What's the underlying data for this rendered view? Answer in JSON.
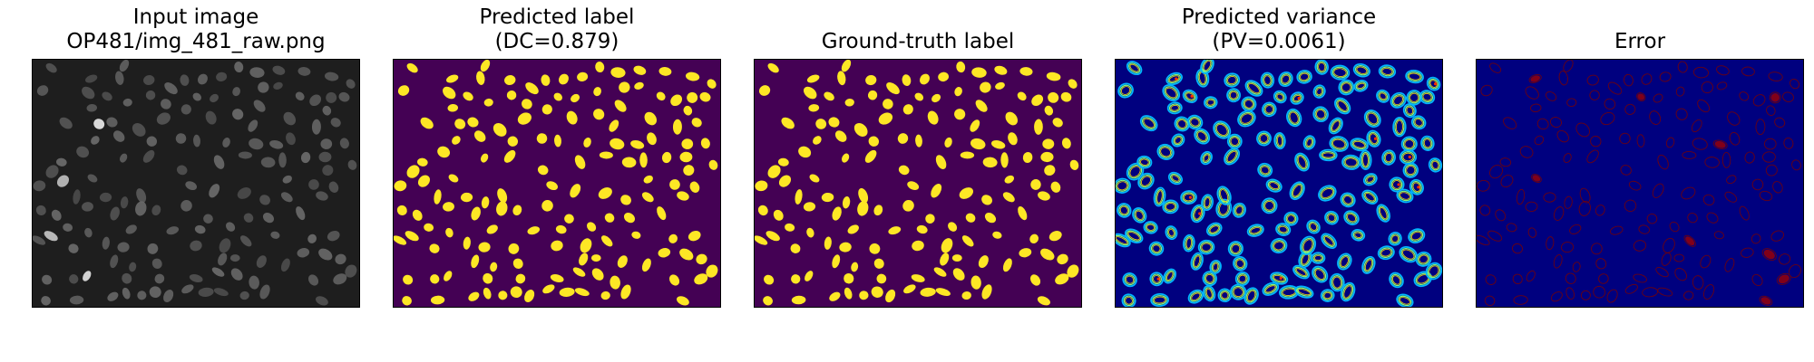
{
  "panels": [
    {
      "id": "input-image",
      "title_lines": [
        "Input image",
        "OP481/img_481_raw.png"
      ],
      "kind": "raw",
      "colors": {
        "background": "#1e1e1e",
        "cell": "#6a6a6a",
        "bright_cell": "#e6e6e6"
      }
    },
    {
      "id": "predicted-label",
      "title_lines": [
        "Predicted label",
        "(DC=0.879)"
      ],
      "kind": "label",
      "colors": {
        "background": "#440154",
        "cell": "#fde725"
      }
    },
    {
      "id": "ground-truth-label",
      "title_lines": [
        "Ground-truth label"
      ],
      "kind": "label",
      "colors": {
        "background": "#440154",
        "cell": "#fde725"
      }
    },
    {
      "id": "predicted-variance",
      "title_lines": [
        "Predicted variance",
        "(PV=0.0061)"
      ],
      "kind": "variance",
      "colors": {
        "background": "#00007f",
        "ring_outer": "#00b7ff",
        "ring_mid": "#7fff7f",
        "ring_inner": "#ffd700",
        "hot": "#ff2a00"
      }
    },
    {
      "id": "error",
      "title_lines": [
        "Error"
      ],
      "kind": "error",
      "colors": {
        "background": "#00007f",
        "ring": "#7a0000",
        "hot": "#a00000"
      }
    }
  ]
}
